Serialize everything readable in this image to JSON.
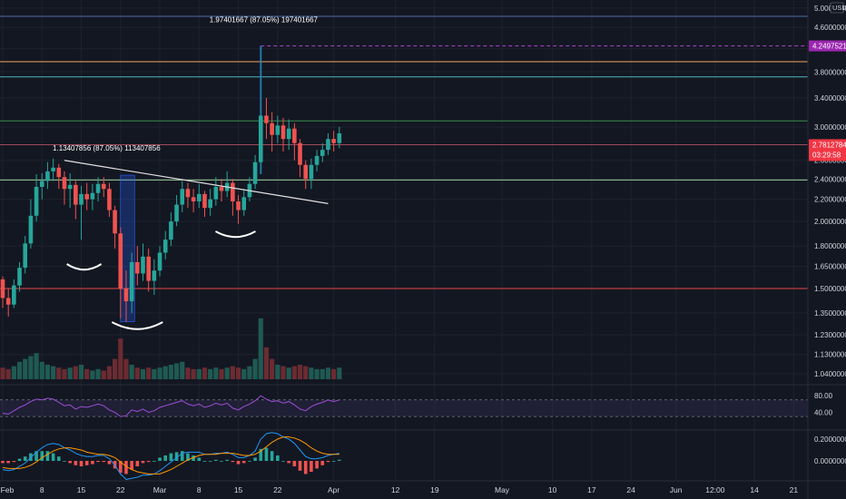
{
  "chart_data": {
    "type": "candlestick",
    "currency": "USD",
    "price_axis": {
      "labels": [
        "5.0000000",
        "4.6000000",
        "4.2000000",
        "3.8000000",
        "3.4000000",
        "3.0000000",
        "2.6000000",
        "2.4000000",
        "2.2000000",
        "2.0000000",
        "1.8000000",
        "1.6500000",
        "1.5000000",
        "1.3500000",
        "1.2300000",
        "1.1300000",
        "1.0400000"
      ],
      "values": [
        5.0,
        4.6,
        4.2,
        3.8,
        3.4,
        3.0,
        2.6,
        2.4,
        2.2,
        2.0,
        1.8,
        1.65,
        1.5,
        1.35,
        1.23,
        1.13,
        1.04
      ],
      "scale": "log"
    },
    "price_tags": [
      {
        "text": "4.2497521",
        "value": 4.2497521,
        "color": "#9c27b0"
      },
      {
        "text": "2.7812784",
        "value": 2.7812784,
        "color": "#f23645"
      },
      {
        "text": "03:29:58",
        "value": 2.66,
        "color": "#f23645"
      }
    ],
    "horizontal_lines": [
      {
        "value": 5.3,
        "color": "#4f6ba8"
      },
      {
        "value": 3.97,
        "color": "#f5a35c"
      },
      {
        "value": 3.72,
        "color": "#4fb3bf"
      },
      {
        "value": 3.08,
        "color": "#3d8f4e"
      },
      {
        "value": 2.78,
        "color": "#a04a5a"
      },
      {
        "value": 2.39,
        "color": "#9bd19b"
      },
      {
        "value": 1.5,
        "color": "#e84545"
      }
    ],
    "purple_dotted_level": 4.2497521,
    "x_axis_labels": [
      "Feb",
      "8",
      "15",
      "22",
      "Mar",
      "8",
      "15",
      "22",
      "Apr",
      "12",
      "19",
      "May",
      "10",
      "17",
      "24",
      "Jun",
      "12:00",
      "14",
      "21"
    ],
    "x_axis_days": [
      0,
      7,
      14,
      21,
      28,
      35,
      42,
      49,
      59,
      70,
      77,
      89,
      98,
      105,
      112,
      120,
      127,
      134,
      141
    ],
    "annotations": [
      {
        "text": "1.97401667 (87.05%) 197401667",
        "day": 46.5,
        "value": 4.7
      },
      {
        "text": "1.13407856 (87.05%) 113407856",
        "day": 18.5,
        "value": 2.71
      }
    ],
    "measure_box": {
      "day_start": 21,
      "day_end": 23.5,
      "low": 1.3,
      "high": 2.44
    },
    "trendline": {
      "day_start": 11,
      "value_start": 2.6,
      "day_end": 58,
      "value_end": 2.16
    },
    "spike": {
      "day": 46,
      "low": 2.45,
      "high": 4.25
    },
    "candles": [
      [
        1.56,
        1.44,
        1.58,
        1.38
      ],
      [
        1.44,
        1.4,
        1.5,
        1.33
      ],
      [
        1.4,
        1.52,
        1.56,
        1.38
      ],
      [
        1.52,
        1.64,
        1.68,
        1.48
      ],
      [
        1.64,
        1.82,
        1.88,
        1.6
      ],
      [
        1.82,
        2.05,
        2.2,
        1.78
      ],
      [
        2.05,
        2.32,
        2.45,
        2.0
      ],
      [
        2.32,
        2.38,
        2.46,
        2.2
      ],
      [
        2.38,
        2.48,
        2.58,
        2.3
      ],
      [
        2.48,
        2.52,
        2.62,
        2.38
      ],
      [
        2.52,
        2.42,
        2.56,
        2.3
      ],
      [
        2.42,
        2.3,
        2.48,
        2.15
      ],
      [
        2.3,
        2.34,
        2.46,
        2.12
      ],
      [
        2.34,
        2.15,
        2.38,
        2.02
      ],
      [
        2.15,
        2.25,
        2.33,
        1.85
      ],
      [
        2.25,
        2.2,
        2.36,
        2.1
      ],
      [
        2.2,
        2.26,
        2.35,
        2.1
      ],
      [
        2.26,
        2.35,
        2.42,
        2.18
      ],
      [
        2.35,
        2.3,
        2.42,
        2.22
      ],
      [
        2.3,
        2.1,
        2.36,
        2.04
      ],
      [
        2.1,
        1.9,
        2.14,
        1.78
      ],
      [
        1.9,
        1.5,
        1.95,
        1.32
      ],
      [
        1.5,
        1.42,
        1.62,
        1.3
      ],
      [
        1.42,
        1.68,
        1.75,
        1.35
      ],
      [
        1.68,
        1.6,
        1.8,
        1.52
      ],
      [
        1.6,
        1.72,
        1.82,
        1.55
      ],
      [
        1.72,
        1.55,
        1.78,
        1.48
      ],
      [
        1.55,
        1.62,
        1.7,
        1.46
      ],
      [
        1.62,
        1.75,
        1.8,
        1.58
      ],
      [
        1.75,
        1.85,
        1.92,
        1.7
      ],
      [
        1.85,
        2.0,
        2.08,
        1.8
      ],
      [
        2.0,
        2.15,
        2.24,
        1.96
      ],
      [
        2.15,
        2.3,
        2.38,
        2.08
      ],
      [
        2.3,
        2.22,
        2.36,
        2.12
      ],
      [
        2.22,
        2.18,
        2.3,
        2.08
      ],
      [
        2.18,
        2.25,
        2.35,
        2.12
      ],
      [
        2.25,
        2.12,
        2.28,
        2.04
      ],
      [
        2.12,
        2.2,
        2.3,
        2.05
      ],
      [
        2.2,
        2.32,
        2.42,
        2.14
      ],
      [
        2.32,
        2.28,
        2.4,
        2.18
      ],
      [
        2.28,
        2.36,
        2.48,
        2.22
      ],
      [
        2.36,
        2.18,
        2.4,
        2.05
      ],
      [
        2.18,
        2.1,
        2.24,
        1.98
      ],
      [
        2.1,
        2.22,
        2.3,
        2.05
      ],
      [
        2.22,
        2.35,
        2.42,
        2.18
      ],
      [
        2.35,
        2.58,
        2.66,
        2.3
      ],
      [
        2.58,
        3.15,
        4.25,
        2.45
      ],
      [
        3.15,
        3.05,
        3.4,
        2.85
      ],
      [
        3.05,
        2.9,
        3.2,
        2.7
      ],
      [
        2.9,
        3.02,
        3.15,
        2.8
      ],
      [
        3.02,
        2.85,
        3.12,
        2.7
      ],
      [
        2.85,
        2.98,
        3.1,
        2.72
      ],
      [
        2.98,
        2.8,
        3.05,
        2.6
      ],
      [
        2.8,
        2.55,
        2.85,
        2.42
      ],
      [
        2.55,
        2.4,
        2.6,
        2.3
      ],
      [
        2.4,
        2.55,
        2.62,
        2.3
      ],
      [
        2.55,
        2.65,
        2.72,
        2.48
      ],
      [
        2.65,
        2.72,
        2.8,
        2.58
      ],
      [
        2.72,
        2.85,
        2.92,
        2.66
      ],
      [
        2.85,
        2.8,
        2.95,
        2.7
      ],
      [
        2.8,
        2.92,
        3.0,
        2.74
      ]
    ],
    "rsi": {
      "axis_labels": [
        "80.00",
        "40.00"
      ],
      "axis_values": [
        80,
        40
      ],
      "upper_band": 70,
      "lower_band": 30,
      "values": [
        38,
        36,
        44,
        52,
        58,
        66,
        72,
        70,
        74,
        72,
        64,
        56,
        58,
        48,
        54,
        52,
        56,
        60,
        56,
        46,
        40,
        30,
        32,
        46,
        42,
        48,
        40,
        44,
        52,
        56,
        60,
        64,
        68,
        60,
        56,
        60,
        52,
        56,
        62,
        58,
        62,
        50,
        46,
        54,
        60,
        68,
        80,
        72,
        66,
        68,
        62,
        66,
        58,
        48,
        44,
        54,
        60,
        64,
        70,
        66,
        70
      ]
    },
    "macd": {
      "axis_labels": [
        "0.20000000",
        "0.00000000"
      ],
      "axis_values": [
        0.2,
        0.0
      ],
      "macd": [
        -0.08,
        -0.09,
        -0.08,
        -0.05,
        -0.02,
        0.03,
        0.08,
        0.12,
        0.15,
        0.16,
        0.15,
        0.12,
        0.1,
        0.07,
        0.05,
        0.04,
        0.04,
        0.05,
        0.05,
        0.02,
        -0.04,
        -0.12,
        -0.17,
        -0.16,
        -0.15,
        -0.13,
        -0.13,
        -0.12,
        -0.09,
        -0.05,
        -0.01,
        0.03,
        0.07,
        0.08,
        0.08,
        0.08,
        0.06,
        0.06,
        0.07,
        0.07,
        0.08,
        0.06,
        0.03,
        0.03,
        0.05,
        0.09,
        0.2,
        0.25,
        0.26,
        0.25,
        0.22,
        0.2,
        0.16,
        0.1,
        0.04,
        0.02,
        0.02,
        0.03,
        0.05,
        0.06,
        0.07
      ],
      "signal": [
        -0.06,
        -0.07,
        -0.07,
        -0.07,
        -0.06,
        -0.04,
        -0.01,
        0.03,
        0.06,
        0.09,
        0.11,
        0.12,
        0.12,
        0.11,
        0.1,
        0.08,
        0.07,
        0.06,
        0.06,
        0.05,
        0.03,
        -0.01,
        -0.05,
        -0.08,
        -0.1,
        -0.11,
        -0.12,
        -0.12,
        -0.12,
        -0.1,
        -0.08,
        -0.05,
        -0.02,
        0.01,
        0.03,
        0.05,
        0.06,
        0.06,
        0.06,
        0.07,
        0.07,
        0.07,
        0.06,
        0.05,
        0.05,
        0.06,
        0.09,
        0.13,
        0.17,
        0.2,
        0.22,
        0.22,
        0.21,
        0.19,
        0.16,
        0.12,
        0.09,
        0.07,
        0.06,
        0.06,
        0.06
      ]
    },
    "volume": [
      8,
      7,
      9,
      12,
      14,
      16,
      18,
      12,
      10,
      9,
      8,
      7,
      8,
      9,
      10,
      7,
      6,
      7,
      6,
      9,
      14,
      28,
      14,
      10,
      8,
      7,
      8,
      7,
      8,
      9,
      10,
      11,
      12,
      8,
      7,
      7,
      8,
      7,
      8,
      7,
      8,
      9,
      8,
      7,
      9,
      14,
      42,
      22,
      14,
      10,
      9,
      8,
      9,
      10,
      9,
      8,
      7,
      7,
      8,
      7,
      8
    ]
  }
}
